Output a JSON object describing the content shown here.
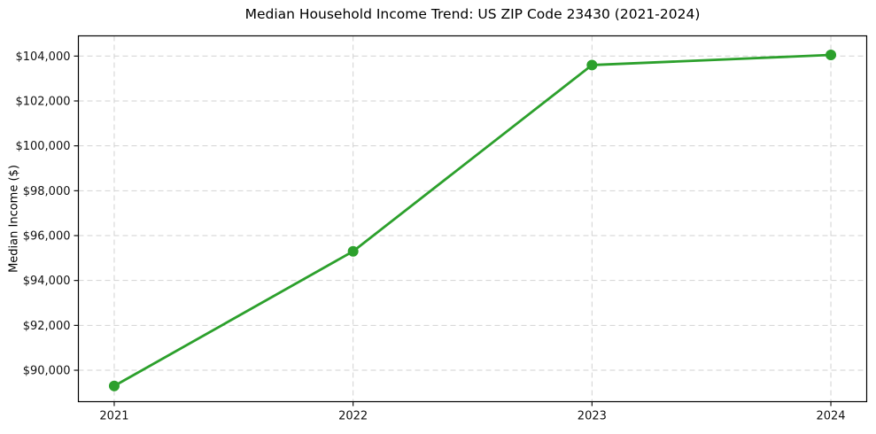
{
  "window": {
    "background": "#ffffff"
  },
  "chart_data": {
    "type": "line",
    "title": "Median Household Income Trend: US ZIP Code 23430 (2021-2024)",
    "xlabel": "",
    "ylabel": "Median Income ($)",
    "x": [
      2021,
      2022,
      2023,
      2024
    ],
    "xtick_labels": [
      "2021",
      "2022",
      "2023",
      "2024"
    ],
    "series": [
      {
        "values": [
          89300,
          95300,
          103600,
          104050
        ],
        "color": "#2ca02c",
        "marker": "circle"
      }
    ],
    "ylim": [
      88600,
      104900
    ],
    "yticks": [
      90000,
      92000,
      94000,
      96000,
      98000,
      100000,
      102000,
      104000
    ],
    "ytick_labels": [
      "$90,000",
      "$92,000",
      "$94,000",
      "$96,000",
      "$98,000",
      "$100,000",
      "$102,000",
      "$104,000"
    ],
    "grid": true,
    "grid_style": "dashed",
    "grid_color": "#d2d2d2",
    "frame_color": "#000000",
    "legend_position": "none"
  }
}
